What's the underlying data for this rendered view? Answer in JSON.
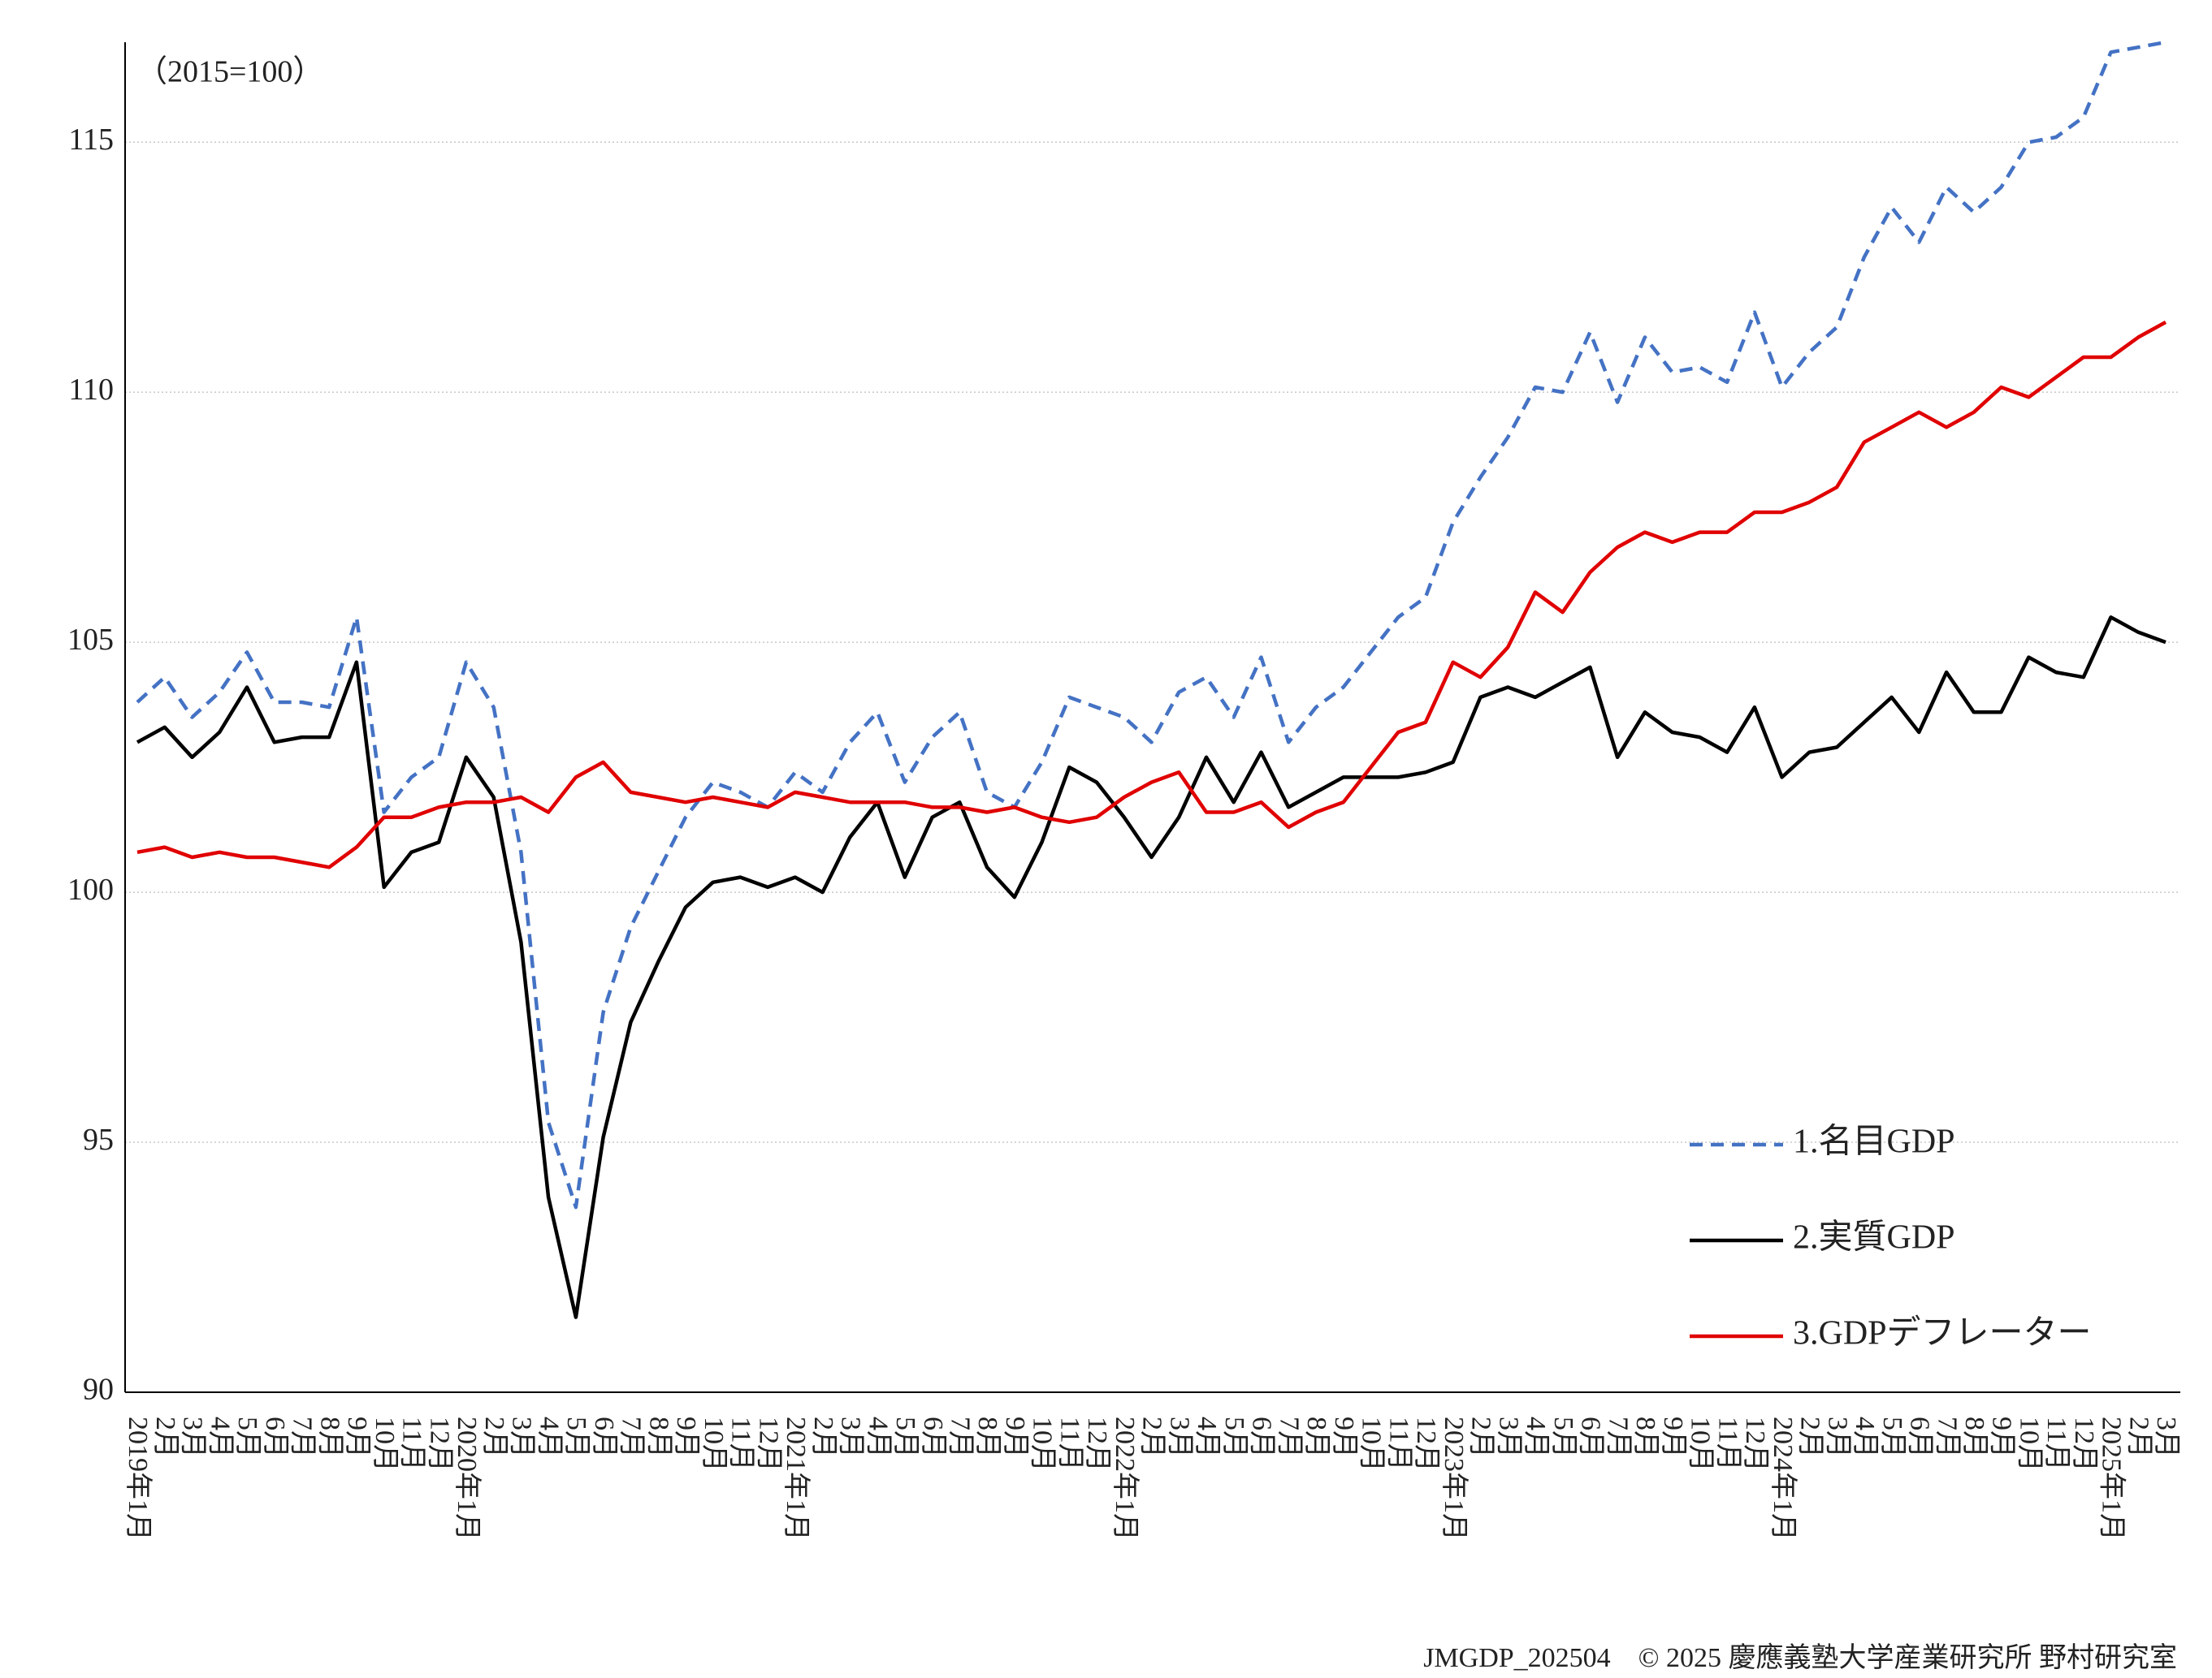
{
  "chart_data": {
    "type": "line",
    "annotation": "（2015=100）",
    "footer": "JMGDP_202504　© 2025 慶應義塾大学産業研究所 野村研究室",
    "categories": [
      "2019年1月",
      "2月",
      "3月",
      "4月",
      "5月",
      "6月",
      "7月",
      "8月",
      "9月",
      "10月",
      "11月",
      "12月",
      "2020年1月",
      "2月",
      "3月",
      "4月",
      "5月",
      "6月",
      "7月",
      "8月",
      "9月",
      "10月",
      "11月",
      "12月",
      "2021年1月",
      "2月",
      "3月",
      "4月",
      "5月",
      "6月",
      "7月",
      "8月",
      "9月",
      "10月",
      "11月",
      "12月",
      "2022年1月",
      "2月",
      "3月",
      "4月",
      "5月",
      "6月",
      "7月",
      "8月",
      "9月",
      "10月",
      "11月",
      "12月",
      "2023年1月",
      "2月",
      "3月",
      "4月",
      "5月",
      "6月",
      "7月",
      "8月",
      "9月",
      "10月",
      "11月",
      "12月",
      "2024年1月",
      "2月",
      "3月",
      "4月",
      "5月",
      "6月",
      "7月",
      "8月",
      "9月",
      "10月",
      "11月",
      "12月",
      "2025年1月",
      "2月",
      "3月"
    ],
    "series": [
      {
        "name": "1.名目GDP",
        "color": "#4472c4",
        "line_style": "dashed",
        "values": [
          103.8,
          104.3,
          103.5,
          104.0,
          104.8,
          103.8,
          103.8,
          103.7,
          105.5,
          101.6,
          102.3,
          102.7,
          104.6,
          103.7,
          100.8,
          95.4,
          93.7,
          97.6,
          99.3,
          100.4,
          101.5,
          102.2,
          102.0,
          101.7,
          102.4,
          102.0,
          103.0,
          103.6,
          102.2,
          103.1,
          103.6,
          102.0,
          101.7,
          102.6,
          103.9,
          103.7,
          103.5,
          103.0,
          104.0,
          104.3,
          103.5,
          104.7,
          103.0,
          103.7,
          104.1,
          104.8,
          105.5,
          105.9,
          107.4,
          108.3,
          109.1,
          110.1,
          110.0,
          111.2,
          109.8,
          111.1,
          110.4,
          110.5,
          110.2,
          111.6,
          110.1,
          110.8,
          111.3,
          112.7,
          113.7,
          113.0,
          114.1,
          113.6,
          114.1,
          115.0,
          115.1,
          115.5,
          116.8,
          116.9,
          117.0
        ]
      },
      {
        "name": "2.実質GDP",
        "color": "#000000",
        "line_style": "solid",
        "values": [
          103.0,
          103.3,
          102.7,
          103.2,
          104.1,
          103.0,
          103.1,
          103.1,
          104.6,
          100.1,
          100.8,
          101.0,
          102.7,
          101.9,
          99.0,
          93.9,
          91.5,
          95.1,
          97.4,
          98.6,
          99.7,
          100.2,
          100.3,
          100.1,
          100.3,
          100.0,
          101.1,
          101.8,
          100.3,
          101.5,
          101.8,
          100.5,
          99.9,
          101.0,
          102.5,
          102.2,
          101.5,
          100.7,
          101.5,
          102.7,
          101.8,
          102.8,
          101.7,
          102.0,
          102.3,
          102.3,
          102.3,
          102.4,
          102.6,
          103.9,
          104.1,
          103.9,
          104.2,
          104.5,
          102.7,
          103.6,
          103.2,
          103.1,
          102.8,
          103.7,
          102.3,
          102.8,
          102.9,
          103.4,
          103.9,
          103.2,
          104.4,
          103.6,
          103.6,
          104.7,
          104.4,
          104.3,
          105.5,
          105.2,
          105.0
        ]
      },
      {
        "name": "3.GDPデフレーター",
        "color": "#e00000",
        "line_style": "solid",
        "values": [
          100.8,
          100.9,
          100.7,
          100.8,
          100.7,
          100.7,
          100.6,
          100.5,
          100.9,
          101.5,
          101.5,
          101.7,
          101.8,
          101.8,
          101.9,
          101.6,
          102.3,
          102.6,
          102.0,
          101.9,
          101.8,
          101.9,
          101.8,
          101.7,
          102.0,
          101.9,
          101.8,
          101.8,
          101.8,
          101.7,
          101.7,
          101.6,
          101.7,
          101.5,
          101.4,
          101.5,
          101.9,
          102.2,
          102.4,
          101.6,
          101.6,
          101.8,
          101.3,
          101.6,
          101.8,
          102.5,
          103.2,
          103.4,
          104.6,
          104.3,
          104.9,
          106.0,
          105.6,
          106.4,
          106.9,
          107.2,
          107.0,
          107.2,
          107.2,
          107.6,
          107.6,
          107.8,
          108.1,
          109.0,
          109.3,
          109.6,
          109.3,
          109.6,
          110.1,
          109.9,
          110.3,
          110.7,
          110.7,
          111.1,
          111.4
        ]
      }
    ],
    "ylim": [
      90,
      117
    ],
    "yticks": [
      90,
      95,
      100,
      105,
      110,
      115
    ],
    "grid": true,
    "legend": "lower right"
  }
}
